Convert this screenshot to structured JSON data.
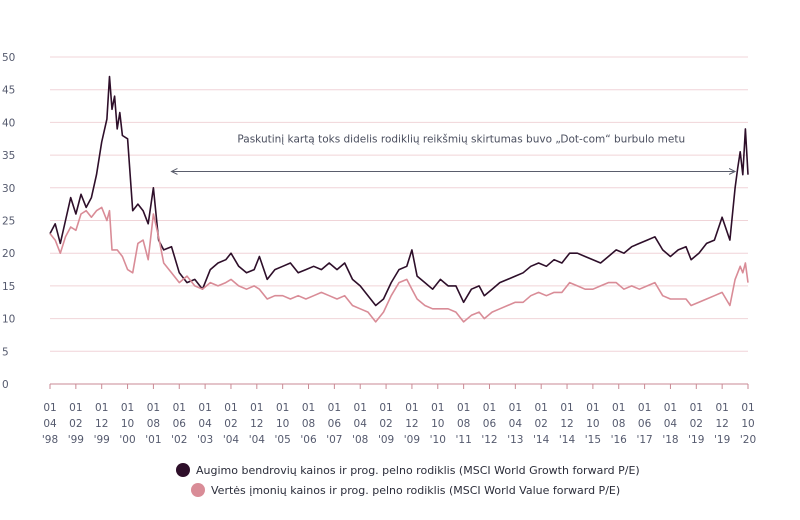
{
  "chart_data": {
    "type": "line",
    "title": "",
    "xlabel": "",
    "ylabel": "",
    "ylim": [
      0,
      50
    ],
    "y_ticks": [
      0,
      5,
      10,
      15,
      20,
      25,
      30,
      35,
      40,
      45,
      50
    ],
    "grid": "horizontal",
    "legend_position": "bottom-center",
    "x_range": [
      "1998-04",
      "2020-10"
    ],
    "x_ticks": [
      {
        "date": "1998-04",
        "top": "01",
        "mid": "04",
        "year": "'98"
      },
      {
        "date": "1999-02",
        "top": "01",
        "mid": "02",
        "year": "'99"
      },
      {
        "date": "1999-12",
        "top": "01",
        "mid": "12",
        "year": "'99"
      },
      {
        "date": "2000-10",
        "top": "01",
        "mid": "10",
        "year": "'00"
      },
      {
        "date": "2001-08",
        "top": "01",
        "mid": "08",
        "year": "'01"
      },
      {
        "date": "2002-06",
        "top": "01",
        "mid": "06",
        "year": "'02"
      },
      {
        "date": "2003-04",
        "top": "01",
        "mid": "04",
        "year": "'03"
      },
      {
        "date": "2004-02",
        "top": "01",
        "mid": "02",
        "year": "'04"
      },
      {
        "date": "2004-12",
        "top": "01",
        "mid": "12",
        "year": "'04"
      },
      {
        "date": "2005-10",
        "top": "01",
        "mid": "10",
        "year": "'05"
      },
      {
        "date": "2006-08",
        "top": "01",
        "mid": "08",
        "year": "'06"
      },
      {
        "date": "2007-06",
        "top": "01",
        "mid": "06",
        "year": "'07"
      },
      {
        "date": "2008-04",
        "top": "01",
        "mid": "04",
        "year": "'08"
      },
      {
        "date": "2009-02",
        "top": "01",
        "mid": "02",
        "year": "'09"
      },
      {
        "date": "2009-12",
        "top": "01",
        "mid": "12",
        "year": "'09"
      },
      {
        "date": "2010-10",
        "top": "01",
        "mid": "10",
        "year": "'10"
      },
      {
        "date": "2011-08",
        "top": "01",
        "mid": "08",
        "year": "'11"
      },
      {
        "date": "2012-06",
        "top": "01",
        "mid": "06",
        "year": "'12"
      },
      {
        "date": "2013-04",
        "top": "01",
        "mid": "04",
        "year": "'13"
      },
      {
        "date": "2014-02",
        "top": "01",
        "mid": "02",
        "year": "'14"
      },
      {
        "date": "2014-12",
        "top": "01",
        "mid": "12",
        "year": "'14"
      },
      {
        "date": "2015-10",
        "top": "01",
        "mid": "10",
        "year": "'15"
      },
      {
        "date": "2016-08",
        "top": "01",
        "mid": "08",
        "year": "'16"
      },
      {
        "date": "2017-06",
        "top": "01",
        "mid": "06",
        "year": "'17"
      },
      {
        "date": "2018-04",
        "top": "01",
        "mid": "04",
        "year": "'18"
      },
      {
        "date": "2019-02",
        "top": "01",
        "mid": "02",
        "year": "'19"
      },
      {
        "date": "2019-12",
        "top": "01",
        "mid": "12",
        "year": "'19"
      },
      {
        "date": "2020-10",
        "top": "01",
        "mid": "10",
        "year": "'20"
      }
    ],
    "annotation": {
      "text": "Paskutinį kartą toks didelis rodiklių reikšmių skirtumas buvo „Dot-com“ burbulo metu",
      "arrow_from": "2002-03",
      "arrow_to": "2020-05",
      "y": 32.5
    },
    "series": [
      {
        "name": "Augimo bendrovių kainos ir prog. pelno rodiklis (MSCI World Growth forward P/E)",
        "color": "#2e0f2a",
        "points": [
          [
            "1998-04",
            23.0
          ],
          [
            "1998-06",
            24.5
          ],
          [
            "1998-08",
            21.5
          ],
          [
            "1998-10",
            25.0
          ],
          [
            "1998-12",
            28.5
          ],
          [
            "1999-02",
            26.0
          ],
          [
            "1999-04",
            29.0
          ],
          [
            "1999-06",
            27.0
          ],
          [
            "1999-08",
            28.5
          ],
          [
            "1999-10",
            32.0
          ],
          [
            "1999-12",
            37.0
          ],
          [
            "2000-02",
            40.5
          ],
          [
            "2000-03",
            47.0
          ],
          [
            "2000-04",
            42.0
          ],
          [
            "2000-05",
            44.0
          ],
          [
            "2000-06",
            39.0
          ],
          [
            "2000-07",
            41.5
          ],
          [
            "2000-08",
            38.0
          ],
          [
            "2000-10",
            37.5
          ],
          [
            "2000-12",
            26.5
          ],
          [
            "2001-02",
            27.5
          ],
          [
            "2001-04",
            26.5
          ],
          [
            "2001-06",
            24.5
          ],
          [
            "2001-08",
            30.0
          ],
          [
            "2001-10",
            22.0
          ],
          [
            "2001-12",
            20.5
          ],
          [
            "2002-03",
            21.0
          ],
          [
            "2002-06",
            17.0
          ],
          [
            "2002-09",
            15.5
          ],
          [
            "2002-12",
            16.0
          ],
          [
            "2003-03",
            14.5
          ],
          [
            "2003-06",
            17.5
          ],
          [
            "2003-09",
            18.5
          ],
          [
            "2003-12",
            19.0
          ],
          [
            "2004-02",
            20.0
          ],
          [
            "2004-05",
            18.0
          ],
          [
            "2004-08",
            17.0
          ],
          [
            "2004-11",
            17.5
          ],
          [
            "2005-01",
            19.5
          ],
          [
            "2005-04",
            16.0
          ],
          [
            "2005-07",
            17.5
          ],
          [
            "2005-10",
            18.0
          ],
          [
            "2006-01",
            18.5
          ],
          [
            "2006-04",
            17.0
          ],
          [
            "2006-07",
            17.5
          ],
          [
            "2006-10",
            18.0
          ],
          [
            "2007-01",
            17.5
          ],
          [
            "2007-04",
            18.5
          ],
          [
            "2007-07",
            17.5
          ],
          [
            "2007-10",
            18.5
          ],
          [
            "2008-01",
            16.0
          ],
          [
            "2008-04",
            15.0
          ],
          [
            "2008-07",
            13.5
          ],
          [
            "2008-10",
            12.0
          ],
          [
            "2009-01",
            13.0
          ],
          [
            "2009-04",
            15.5
          ],
          [
            "2009-07",
            17.5
          ],
          [
            "2009-10",
            18.0
          ],
          [
            "2009-12",
            20.5
          ],
          [
            "2010-02",
            16.5
          ],
          [
            "2010-05",
            15.5
          ],
          [
            "2010-08",
            14.5
          ],
          [
            "2010-11",
            16.0
          ],
          [
            "2011-02",
            15.0
          ],
          [
            "2011-05",
            15.0
          ],
          [
            "2011-08",
            12.5
          ],
          [
            "2011-11",
            14.5
          ],
          [
            "2012-02",
            15.0
          ],
          [
            "2012-04",
            13.5
          ],
          [
            "2012-07",
            14.5
          ],
          [
            "2012-10",
            15.5
          ],
          [
            "2013-01",
            16.0
          ],
          [
            "2013-04",
            16.5
          ],
          [
            "2013-07",
            17.0
          ],
          [
            "2013-10",
            18.0
          ],
          [
            "2014-01",
            18.5
          ],
          [
            "2014-04",
            18.0
          ],
          [
            "2014-07",
            19.0
          ],
          [
            "2014-10",
            18.5
          ],
          [
            "2015-01",
            20.0
          ],
          [
            "2015-04",
            20.0
          ],
          [
            "2015-07",
            19.5
          ],
          [
            "2015-10",
            19.0
          ],
          [
            "2016-01",
            18.5
          ],
          [
            "2016-04",
            19.5
          ],
          [
            "2016-07",
            20.5
          ],
          [
            "2016-10",
            20.0
          ],
          [
            "2017-01",
            21.0
          ],
          [
            "2017-04",
            21.5
          ],
          [
            "2017-07",
            22.0
          ],
          [
            "2017-10",
            22.5
          ],
          [
            "2018-01",
            20.5
          ],
          [
            "2018-04",
            19.5
          ],
          [
            "2018-07",
            20.5
          ],
          [
            "2018-10",
            21.0
          ],
          [
            "2018-12",
            19.0
          ],
          [
            "2019-03",
            20.0
          ],
          [
            "2019-06",
            21.5
          ],
          [
            "2019-09",
            22.0
          ],
          [
            "2019-12",
            25.5
          ],
          [
            "2020-03",
            22.0
          ],
          [
            "2020-05",
            30.0
          ],
          [
            "2020-06",
            33.0
          ],
          [
            "2020-07",
            35.5
          ],
          [
            "2020-08",
            32.0
          ],
          [
            "2020-09",
            39.0
          ],
          [
            "2020-10",
            32.0
          ]
        ]
      },
      {
        "name": "Vertės įmonių kainos ir prog. pelno rodiklis (MSCI World Value forward P/E)",
        "color": "#d98c97",
        "points": [
          [
            "1998-04",
            23.0
          ],
          [
            "1998-06",
            22.0
          ],
          [
            "1998-08",
            20.0
          ],
          [
            "1998-10",
            22.5
          ],
          [
            "1998-12",
            24.0
          ],
          [
            "1999-02",
            23.5
          ],
          [
            "1999-04",
            26.0
          ],
          [
            "1999-06",
            26.5
          ],
          [
            "1999-08",
            25.5
          ],
          [
            "1999-10",
            26.5
          ],
          [
            "1999-12",
            27.0
          ],
          [
            "2000-02",
            25.0
          ],
          [
            "2000-03",
            26.5
          ],
          [
            "2000-04",
            20.5
          ],
          [
            "2000-06",
            20.5
          ],
          [
            "2000-08",
            19.5
          ],
          [
            "2000-10",
            17.5
          ],
          [
            "2000-12",
            17.0
          ],
          [
            "2001-02",
            21.5
          ],
          [
            "2001-04",
            22.0
          ],
          [
            "2001-06",
            19.0
          ],
          [
            "2001-08",
            26.0
          ],
          [
            "2001-10",
            22.5
          ],
          [
            "2001-12",
            18.5
          ],
          [
            "2002-03",
            17.0
          ],
          [
            "2002-06",
            15.5
          ],
          [
            "2002-09",
            16.5
          ],
          [
            "2002-12",
            15.0
          ],
          [
            "2003-03",
            14.5
          ],
          [
            "2003-06",
            15.5
          ],
          [
            "2003-09",
            15.0
          ],
          [
            "2003-12",
            15.5
          ],
          [
            "2004-02",
            16.0
          ],
          [
            "2004-05",
            15.0
          ],
          [
            "2004-08",
            14.5
          ],
          [
            "2004-11",
            15.0
          ],
          [
            "2005-01",
            14.5
          ],
          [
            "2005-04",
            13.0
          ],
          [
            "2005-07",
            13.5
          ],
          [
            "2005-10",
            13.5
          ],
          [
            "2006-01",
            13.0
          ],
          [
            "2006-04",
            13.5
          ],
          [
            "2006-07",
            13.0
          ],
          [
            "2006-10",
            13.5
          ],
          [
            "2007-01",
            14.0
          ],
          [
            "2007-04",
            13.5
          ],
          [
            "2007-07",
            13.0
          ],
          [
            "2007-10",
            13.5
          ],
          [
            "2008-01",
            12.0
          ],
          [
            "2008-04",
            11.5
          ],
          [
            "2008-07",
            11.0
          ],
          [
            "2008-10",
            9.5
          ],
          [
            "2009-01",
            11.0
          ],
          [
            "2009-04",
            13.5
          ],
          [
            "2009-07",
            15.5
          ],
          [
            "2009-10",
            16.0
          ],
          [
            "2009-12",
            14.5
          ],
          [
            "2010-02",
            13.0
          ],
          [
            "2010-05",
            12.0
          ],
          [
            "2010-08",
            11.5
          ],
          [
            "2010-11",
            11.5
          ],
          [
            "2011-02",
            11.5
          ],
          [
            "2011-05",
            11.0
          ],
          [
            "2011-08",
            9.5
          ],
          [
            "2011-11",
            10.5
          ],
          [
            "2012-02",
            11.0
          ],
          [
            "2012-04",
            10.0
          ],
          [
            "2012-07",
            11.0
          ],
          [
            "2012-10",
            11.5
          ],
          [
            "2013-01",
            12.0
          ],
          [
            "2013-04",
            12.5
          ],
          [
            "2013-07",
            12.5
          ],
          [
            "2013-10",
            13.5
          ],
          [
            "2014-01",
            14.0
          ],
          [
            "2014-04",
            13.5
          ],
          [
            "2014-07",
            14.0
          ],
          [
            "2014-10",
            14.0
          ],
          [
            "2015-01",
            15.5
          ],
          [
            "2015-04",
            15.0
          ],
          [
            "2015-07",
            14.5
          ],
          [
            "2015-10",
            14.5
          ],
          [
            "2016-01",
            15.0
          ],
          [
            "2016-04",
            15.5
          ],
          [
            "2016-07",
            15.5
          ],
          [
            "2016-10",
            14.5
          ],
          [
            "2017-01",
            15.0
          ],
          [
            "2017-04",
            14.5
          ],
          [
            "2017-07",
            15.0
          ],
          [
            "2017-10",
            15.5
          ],
          [
            "2018-01",
            13.5
          ],
          [
            "2018-04",
            13.0
          ],
          [
            "2018-07",
            13.0
          ],
          [
            "2018-10",
            13.0
          ],
          [
            "2018-12",
            12.0
          ],
          [
            "2019-03",
            12.5
          ],
          [
            "2019-06",
            13.0
          ],
          [
            "2019-09",
            13.5
          ],
          [
            "2019-12",
            14.0
          ],
          [
            "2020-03",
            12.0
          ],
          [
            "2020-05",
            16.0
          ],
          [
            "2020-06",
            17.0
          ],
          [
            "2020-07",
            18.0
          ],
          [
            "2020-08",
            17.0
          ],
          [
            "2020-09",
            18.5
          ],
          [
            "2020-10",
            15.5
          ]
        ]
      }
    ]
  }
}
